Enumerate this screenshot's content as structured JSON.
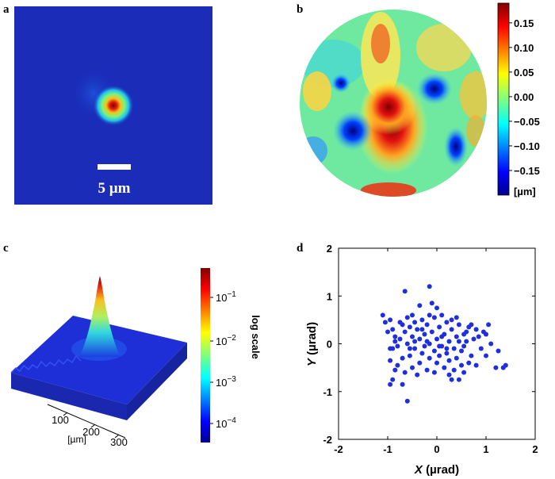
{
  "chart_data": [
    {
      "panel": "a",
      "type": "heatmap",
      "scale_bar_label": "5 µm"
    },
    {
      "panel": "b",
      "type": "heatmap",
      "colorbar_ticks": [
        "0.15",
        "0.10",
        "0.05",
        "0.00",
        "−0.05",
        "−0.10",
        "−0.15"
      ],
      "colorbar_tick_values": [
        0.15,
        0.1,
        0.05,
        0.0,
        -0.05,
        -0.1,
        -0.15
      ],
      "colorbar_range": [
        -0.2,
        0.19
      ],
      "colorbar_unit": "[µm]"
    },
    {
      "panel": "c",
      "type": "area",
      "colorbar_label": "log scale",
      "colorbar_ticks": [
        "10",
        "10",
        "10",
        "10"
      ],
      "colorbar_tick_exponents": [
        "−1",
        "−2",
        "−3",
        "−4"
      ],
      "axis_ticks": [
        "100",
        "200",
        "300"
      ],
      "axis_unit": "[µm]"
    },
    {
      "panel": "d",
      "type": "scatter",
      "xlabel_var": "X",
      "xlabel_unit": " (µrad)",
      "ylabel_var": "Y",
      "ylabel_unit": " (µrad)",
      "xlim": [
        -2,
        2
      ],
      "ylim": [
        -2,
        2
      ],
      "xticks": [
        "-2",
        "-1",
        "0",
        "1",
        "2"
      ],
      "yticks": [
        "-2",
        "-1",
        "0",
        "1",
        "2"
      ],
      "color": "#1f2fe0",
      "points": [
        [
          -1.1,
          0.6
        ],
        [
          -1.05,
          0.45
        ],
        [
          -0.95,
          0.5
        ],
        [
          -0.9,
          0.3
        ],
        [
          -0.85,
          0.15
        ],
        [
          -0.9,
          -0.1
        ],
        [
          -0.75,
          0.1
        ],
        [
          -0.8,
          -0.05
        ],
        [
          -0.7,
          0.4
        ],
        [
          -0.65,
          0.25
        ],
        [
          -0.6,
          0.55
        ],
        [
          -0.55,
          0.35
        ],
        [
          -0.5,
          0.15
        ],
        [
          -0.45,
          0.45
        ],
        [
          -0.4,
          0.3
        ],
        [
          -0.35,
          0.1
        ],
        [
          -0.3,
          0.5
        ],
        [
          -0.25,
          0.2
        ],
        [
          -0.2,
          0.4
        ],
        [
          -0.15,
          0.0
        ],
        [
          -0.1,
          0.25
        ],
        [
          -0.05,
          0.55
        ],
        [
          0.0,
          0.1
        ],
        [
          0.05,
          0.35
        ],
        [
          0.1,
          -0.05
        ],
        [
          0.15,
          0.2
        ],
        [
          0.2,
          0.45
        ],
        [
          0.25,
          0.05
        ],
        [
          0.3,
          0.3
        ],
        [
          0.35,
          -0.1
        ],
        [
          0.4,
          0.15
        ],
        [
          0.45,
          0.4
        ],
        [
          0.5,
          -0.15
        ],
        [
          0.55,
          0.2
        ],
        [
          0.6,
          0.05
        ],
        [
          0.65,
          0.35
        ],
        [
          0.7,
          -0.25
        ],
        [
          0.75,
          0.1
        ],
        [
          0.8,
          0.3
        ],
        [
          0.9,
          -0.1
        ],
        [
          -0.95,
          -0.35
        ],
        [
          -0.85,
          -0.55
        ],
        [
          -0.9,
          -0.75
        ],
        [
          -0.7,
          -0.3
        ],
        [
          -0.65,
          -0.6
        ],
        [
          -0.55,
          -0.25
        ],
        [
          -0.5,
          -0.5
        ],
        [
          -0.45,
          -0.1
        ],
        [
          -0.35,
          -0.4
        ],
        [
          -0.3,
          -0.2
        ],
        [
          -0.2,
          -0.55
        ],
        [
          -0.15,
          -0.3
        ],
        [
          -0.05,
          -0.15
        ],
        [
          0.0,
          -0.4
        ],
        [
          0.05,
          -0.25
        ],
        [
          0.15,
          -0.5
        ],
        [
          0.2,
          -0.2
        ],
        [
          0.25,
          -0.35
        ],
        [
          0.35,
          -0.55
        ],
        [
          0.4,
          -0.3
        ],
        [
          0.45,
          -0.75
        ],
        [
          0.5,
          -0.45
        ],
        [
          0.55,
          -0.6
        ],
        [
          0.3,
          -0.75
        ],
        [
          -0.6,
          -1.2
        ],
        [
          -0.7,
          -0.85
        ],
        [
          -0.95,
          -0.85
        ],
        [
          1.0,
          -0.25
        ],
        [
          1.1,
          0.0
        ],
        [
          1.25,
          -0.15
        ],
        [
          1.35,
          -0.5
        ],
        [
          1.4,
          -0.45
        ],
        [
          1.2,
          -0.5
        ],
        [
          1.05,
          0.4
        ],
        [
          0.95,
          0.25
        ],
        [
          -0.15,
          1.2
        ],
        [
          -0.65,
          1.1
        ],
        [
          -0.35,
          0.8
        ],
        [
          -0.1,
          0.85
        ],
        [
          0.0,
          0.75
        ],
        [
          -0.85,
          0.05
        ],
        [
          -0.6,
          0.0
        ],
        [
          -0.25,
          -0.05
        ],
        [
          0.1,
          0.15
        ],
        [
          0.6,
          0.25
        ],
        [
          0.85,
          0.15
        ],
        [
          -0.45,
          0.05
        ],
        [
          -0.75,
          0.45
        ],
        [
          0.3,
          0.5
        ],
        [
          0.05,
          -0.05
        ],
        [
          -0.2,
          0.05
        ],
        [
          0.45,
          0.05
        ],
        [
          0.7,
          0.4
        ],
        [
          -0.95,
          -0.1
        ],
        [
          -0.3,
          0.3
        ],
        [
          0.2,
          -0.1
        ],
        [
          0.55,
          -0.05
        ],
        [
          0.65,
          -0.4
        ],
        [
          -0.55,
          -0.1
        ],
        [
          -0.05,
          -0.6
        ],
        [
          0.25,
          -0.65
        ],
        [
          -0.4,
          -0.65
        ],
        [
          -0.8,
          -0.45
        ],
        [
          0.8,
          -0.45
        ],
        [
          1.0,
          0.2
        ],
        [
          -1.0,
          0.25
        ],
        [
          0.1,
          0.6
        ],
        [
          -0.5,
          0.6
        ],
        [
          0.4,
          0.55
        ],
        [
          -0.15,
          0.6
        ]
      ]
    }
  ]
}
